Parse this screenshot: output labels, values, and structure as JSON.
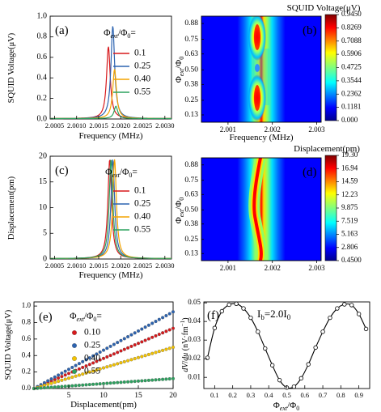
{
  "chart_data": [
    {
      "panel": "a",
      "type": "line",
      "xlabel": "Frequency (MHz)",
      "ylabel": "SQUID Voltage(μV)",
      "xlim": [
        2.0004,
        2.00315
      ],
      "ylim": [
        0.0,
        1.0
      ],
      "xticks": [
        "2.0005",
        "2.0010",
        "2.0015",
        "2.0020",
        "2.0025",
        "2.0030"
      ],
      "yticks": [
        "0.0",
        "0.2",
        "0.4",
        "0.6",
        "0.8",
        "1.0"
      ],
      "legend_title": "Φext/Φ0=",
      "legend_position": "top-right",
      "series": [
        {
          "name": "0.1",
          "color": "#d7191c",
          "peak_x": 2.00172,
          "peak_y": 0.7,
          "width": 5e-05
        },
        {
          "name": "0.25",
          "color": "#2c63b0",
          "peak_x": 2.00182,
          "peak_y": 0.9,
          "width": 5e-05
        },
        {
          "name": "0.40",
          "color": "#f4a400",
          "peak_x": 2.00186,
          "peak_y": 0.48,
          "width": 5e-05
        },
        {
          "name": "0.55",
          "color": "#2ca25f",
          "peak_x": 2.00189,
          "peak_y": 0.12,
          "width": 5e-05
        }
      ]
    },
    {
      "panel": "b",
      "type": "heatmap",
      "title": "SQUID Voltage(μV)",
      "xlabel": "Frequency (MHz)",
      "ylabel": "Φext/Φ0",
      "xlim": [
        2.0004,
        2.0031
      ],
      "xticks": [
        "2.001",
        "2.002",
        "2.003"
      ],
      "yticks": [
        "0.13",
        "0.25",
        "0.38",
        "0.50",
        "0.63",
        "0.75",
        "0.88"
      ],
      "ylim": [
        0.07,
        0.94
      ],
      "colorbar_ticks": [
        "0.9450",
        "0.8269",
        "0.7088",
        "0.5906",
        "0.4725",
        "0.3544",
        "0.2362",
        "0.1181",
        "0.000"
      ]
    },
    {
      "panel": "c",
      "type": "line",
      "xlabel": "Frequency (MHz)",
      "ylabel": "Displacement(pm)",
      "xlim": [
        2.0004,
        2.00315
      ],
      "ylim": [
        0,
        20
      ],
      "xticks": [
        "2.0005",
        "2.0010",
        "2.0015",
        "2.0020",
        "2.0025",
        "2.0030"
      ],
      "yticks": [
        "0",
        "5",
        "10",
        "15",
        "20"
      ],
      "legend_title": "Φext/Φ0=",
      "legend_position": "top-right",
      "series": [
        {
          "name": "0.1",
          "color": "#d7191c",
          "peak_x": 2.00175,
          "peak_y": 19.3,
          "width": 5e-05
        },
        {
          "name": "0.25",
          "color": "#2c63b0",
          "peak_x": 2.00182,
          "peak_y": 19.3,
          "width": 5e-05
        },
        {
          "name": "0.40",
          "color": "#f4a400",
          "peak_x": 2.00186,
          "peak_y": 19.3,
          "width": 5e-05
        },
        {
          "name": "0.55",
          "color": "#2ca25f",
          "peak_x": 2.00178,
          "peak_y": 19.3,
          "width": 5e-05
        }
      ]
    },
    {
      "panel": "d",
      "type": "heatmap",
      "title": "Displacement(pm)",
      "ylabel": "Φext/Φ0",
      "xlim": [
        2.0004,
        2.0031
      ],
      "xticks": [
        "2.001",
        "2.002",
        "2.003"
      ],
      "yticks": [
        "0.13",
        "0.25",
        "0.38",
        "0.50",
        "0.63",
        "0.75",
        "0.88"
      ],
      "ylim": [
        0.07,
        0.94
      ],
      "colorbar_ticks": [
        "19.30",
        "16.94",
        "14.59",
        "12.23",
        "9.875",
        "7.519",
        "5.163",
        "2.806",
        "0.4500"
      ]
    },
    {
      "panel": "e",
      "type": "scatter",
      "xlabel": "Displacement(pm)",
      "ylabel": "SQUID Voltage(μV)",
      "xlim": [
        0,
        20
      ],
      "ylim": [
        0,
        1.05
      ],
      "xticks": [
        "5",
        "10",
        "15",
        "20"
      ],
      "yticks": [
        "0.0",
        "0.2",
        "0.4",
        "0.6",
        "0.8",
        "1.0"
      ],
      "legend_title": "Φext/Φ0=",
      "legend_position": "top-left",
      "series": [
        {
          "name": "0.10",
          "color": "#d7191c",
          "slope": 0.0365
        },
        {
          "name": "0.25",
          "color": "#2c63b0",
          "slope": 0.0465
        },
        {
          "name": "0.40",
          "color": "#f4c300",
          "slope": 0.025
        },
        {
          "name": "0.55",
          "color": "#2ca25f",
          "slope": 0.006
        }
      ]
    },
    {
      "panel": "f",
      "type": "line",
      "xlabel": "Φext/Φ0",
      "ylabel": "dV/du (nV·fm⁻¹)",
      "annotation": "Ib=2.0I0",
      "xlim": [
        0.04,
        0.96
      ],
      "ylim": [
        0.004,
        0.0505
      ],
      "xticks": [
        "0.1",
        "0.2",
        "0.3",
        "0.4",
        "0.5",
        "0.6",
        "0.7",
        "0.8",
        "0.9"
      ],
      "yticks": [
        "0.01",
        "0.02",
        "0.03",
        "0.04",
        "0.05"
      ],
      "x": [
        0.06,
        0.1,
        0.14,
        0.18,
        0.22,
        0.26,
        0.3,
        0.34,
        0.38,
        0.42,
        0.46,
        0.5,
        0.54,
        0.58,
        0.62,
        0.66,
        0.7,
        0.74,
        0.78,
        0.82,
        0.86,
        0.9,
        0.94
      ],
      "y": [
        0.0205,
        0.0365,
        0.0455,
        0.049,
        0.0495,
        0.047,
        0.042,
        0.0345,
        0.0255,
        0.0165,
        0.0085,
        0.0045,
        0.005,
        0.0095,
        0.017,
        0.026,
        0.0345,
        0.042,
        0.047,
        0.0492,
        0.0488,
        0.044,
        0.036
      ]
    }
  ],
  "labels": {
    "panel_a": "(a)",
    "panel_b": "(b)",
    "panel_c": "(c)",
    "panel_d": "(d)",
    "panel_e": "(e)",
    "panel_f": "(f)"
  }
}
